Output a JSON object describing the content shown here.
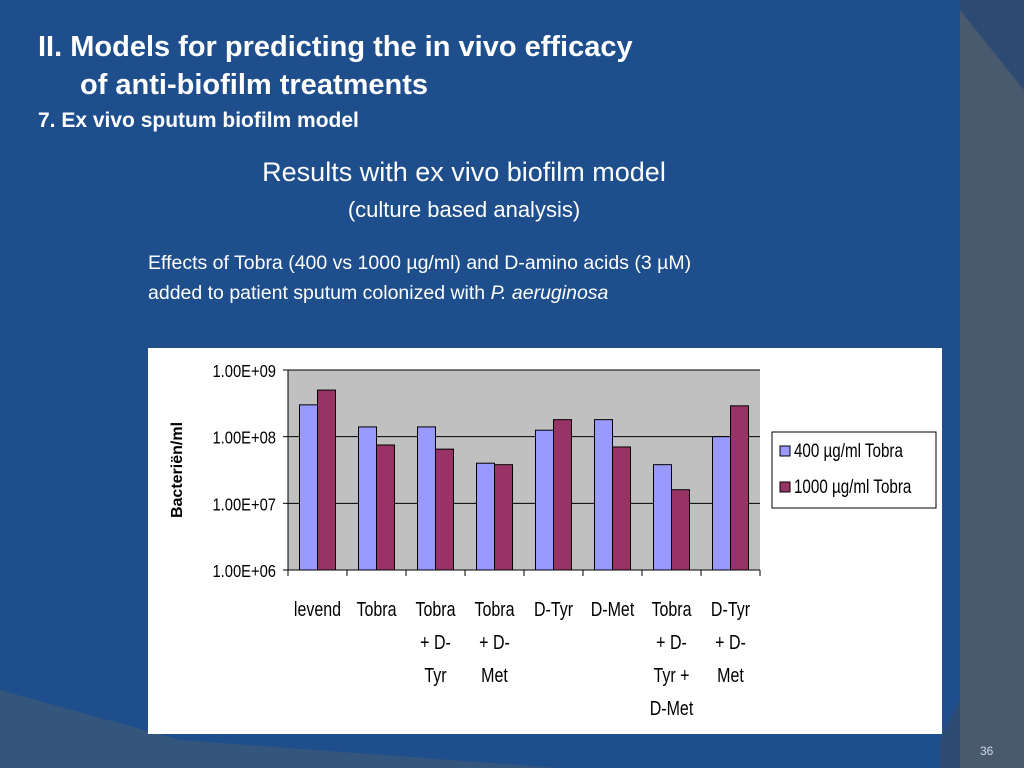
{
  "slide": {
    "title_line1": "II. Models for predicting the in vivo efficacy",
    "title_line2": "of anti-biofilm treatments",
    "subtitle": "7. Ex vivo sputum biofilm model",
    "results_title": "Results with ex vivo biofilm model",
    "results_subtitle": "(culture based analysis)",
    "effects_line1": "Effects of Tobra (400 vs 1000 µg/ml) and D-amino acids (3 µM)",
    "effects_line2_prefix": "added to patient sputum colonized with ",
    "effects_species": "P. aeruginosa",
    "page_number": "36"
  },
  "colors": {
    "background": "#1f4e8c",
    "series_1": "#9999ff",
    "series_2": "#993366",
    "plot_area": "#c0c0c0"
  },
  "chart_data": {
    "type": "bar",
    "scale": "log",
    "ylabel": "Bacteriën/ml",
    "xlabel": "",
    "ylim": [
      1000000,
      1000000000
    ],
    "yticks": [
      "1.00E+06",
      "1.00E+07",
      "1.00E+08",
      "1.00E+09"
    ],
    "categories": [
      [
        "levend"
      ],
      [
        "Tobra"
      ],
      [
        "Tobra",
        "+ D-",
        "Tyr"
      ],
      [
        "Tobra",
        "+ D-",
        "Met"
      ],
      [
        "D-Tyr"
      ],
      [
        "D-Met"
      ],
      [
        "Tobra",
        "+ D-",
        "Tyr +",
        "D-Met"
      ],
      [
        "D-Tyr",
        "+ D-",
        "Met"
      ]
    ],
    "series": [
      {
        "name": "400 µg/ml Tobra",
        "values": [
          300000000,
          140000000,
          140000000,
          40000000,
          125000000,
          180000000,
          38000000,
          100000000
        ]
      },
      {
        "name": "1000 µg/ml Tobra",
        "values": [
          500000000,
          75000000,
          65000000,
          38000000,
          180000000,
          70000000,
          16000000,
          290000000
        ]
      }
    ],
    "grid": true,
    "legend": "right"
  }
}
